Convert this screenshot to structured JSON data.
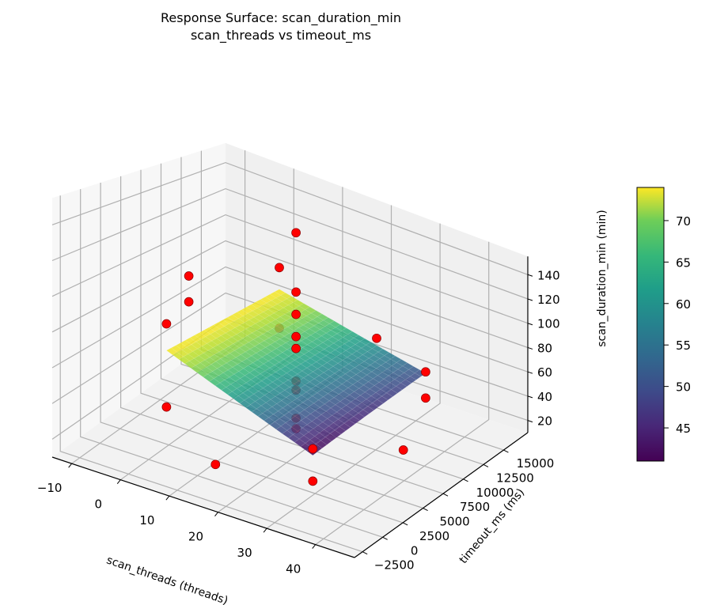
{
  "chart_data": {
    "type": "surface3d",
    "title": "Response Surface: scan_duration_min",
    "subtitle": "scan_threads vs timeout_ms",
    "xlabel": "scan_threads (threads)",
    "ylabel": "timeout_ms (ms)",
    "zlabel": "scan_duration_min (min)",
    "xlim": [
      -14,
      48
    ],
    "ylim": [
      -3500,
      18000
    ],
    "zlim": [
      10,
      155
    ],
    "xticks": [
      "−10",
      "0",
      "10",
      "20",
      "30",
      "40"
    ],
    "xtick_values": [
      -10,
      0,
      10,
      20,
      30,
      40
    ],
    "yticks": [
      "−2500",
      "0",
      "2500",
      "5000",
      "7500",
      "10000",
      "12500",
      "15000"
    ],
    "ytick_values": [
      -2500,
      0,
      2500,
      5000,
      7500,
      10000,
      12500,
      15000
    ],
    "zticks": [
      "20",
      "40",
      "60",
      "80",
      "100",
      "120",
      "140"
    ],
    "ztick_values": [
      20,
      40,
      60,
      80,
      100,
      120,
      140
    ],
    "grid": true,
    "surface": {
      "x_range": [
        2,
        32
      ],
      "y_range": [
        1000,
        15000
      ],
      "z_corners": {
        "x_min_y_min": 74,
        "x_max_y_min": 41,
        "x_min_y_max": 74,
        "x_max_y_max": 49
      },
      "colormap": "viridis",
      "alpha": 0.85
    },
    "colorbar": {
      "min": 41,
      "max": 74,
      "ticks": [
        "45",
        "50",
        "55",
        "60",
        "65",
        "70"
      ],
      "tick_values": [
        45,
        50,
        55,
        60,
        65,
        70
      ]
    },
    "points": [
      {
        "x": 17,
        "y": 8000,
        "z": 150
      },
      {
        "x": 17,
        "y": 8000,
        "z": 110
      },
      {
        "x": 17,
        "y": 8000,
        "z": 95
      },
      {
        "x": 17,
        "y": 8000,
        "z": 80
      },
      {
        "x": 17,
        "y": 8000,
        "z": 72
      },
      {
        "x": 17,
        "y": 8000,
        "z": 50
      },
      {
        "x": 17,
        "y": 8000,
        "z": 44
      },
      {
        "x": 17,
        "y": 8000,
        "z": 25
      },
      {
        "x": 17,
        "y": 8000,
        "z": 18
      },
      {
        "x": -5,
        "y": 8000,
        "z": 95
      },
      {
        "x": -5,
        "y": 8000,
        "z": 78
      },
      {
        "x": 2,
        "y": 1000,
        "z": 90
      },
      {
        "x": 2,
        "y": 15000,
        "z": 90
      },
      {
        "x": 32,
        "y": 1000,
        "z": 45
      },
      {
        "x": 32,
        "y": 15000,
        "z": 50
      },
      {
        "x": 2,
        "y": 1000,
        "z": 40
      },
      {
        "x": 2,
        "y": 15000,
        "z": 45
      },
      {
        "x": 32,
        "y": 1000,
        "z": 25
      },
      {
        "x": 39,
        "y": 8000,
        "z": 28
      },
      {
        "x": 17,
        "y": -2000,
        "z": 30
      },
      {
        "x": 17,
        "y": 18000,
        "z": 45
      },
      {
        "x": 32,
        "y": 15000,
        "z": 30
      }
    ],
    "point_color": "#ff0000"
  }
}
